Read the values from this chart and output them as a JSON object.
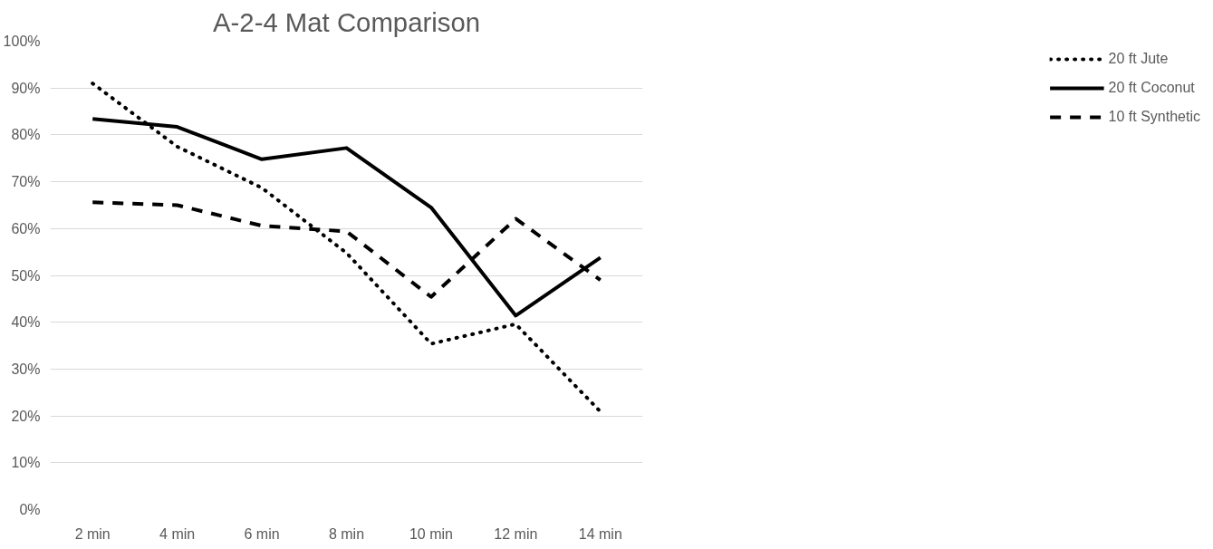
{
  "chart_data": {
    "type": "line",
    "title": "A-2-4 Mat Comparison",
    "categories": [
      "2 min",
      "4 min",
      "6 min",
      "8 min",
      "10 min",
      "12 min",
      "14 min"
    ],
    "series": [
      {
        "name": "20 ft Jute",
        "color": "#000000",
        "line_style": "dotted",
        "values": [
          91,
          77.5,
          68.7,
          54.8,
          35.4,
          39.6,
          20.9
        ]
      },
      {
        "name": "20 ft Coconut",
        "color": "#000000",
        "line_style": "solid",
        "values": [
          83.4,
          81.7,
          74.8,
          77.2,
          64.5,
          41.4,
          53.8
        ]
      },
      {
        "name": "10 ft Synthetic",
        "color": "#000000",
        "line_style": "dashed",
        "values": [
          65.6,
          65.0,
          60.6,
          59.4,
          45.4,
          62.1,
          49.0
        ]
      }
    ],
    "ylim": [
      0,
      100
    ],
    "yticks": [
      {
        "value": 0,
        "label": "0%"
      },
      {
        "value": 10,
        "label": "10%"
      },
      {
        "value": 20,
        "label": "20%"
      },
      {
        "value": 30,
        "label": "30%"
      },
      {
        "value": 40,
        "label": "40%"
      },
      {
        "value": 50,
        "label": "50%"
      },
      {
        "value": 60,
        "label": "60%"
      },
      {
        "value": 70,
        "label": "70%"
      },
      {
        "value": 80,
        "label": "80%"
      },
      {
        "value": 90,
        "label": "90%"
      },
      {
        "value": 100,
        "label": "100%"
      }
    ],
    "grid": "y",
    "legend": "right",
    "marker": "none"
  }
}
